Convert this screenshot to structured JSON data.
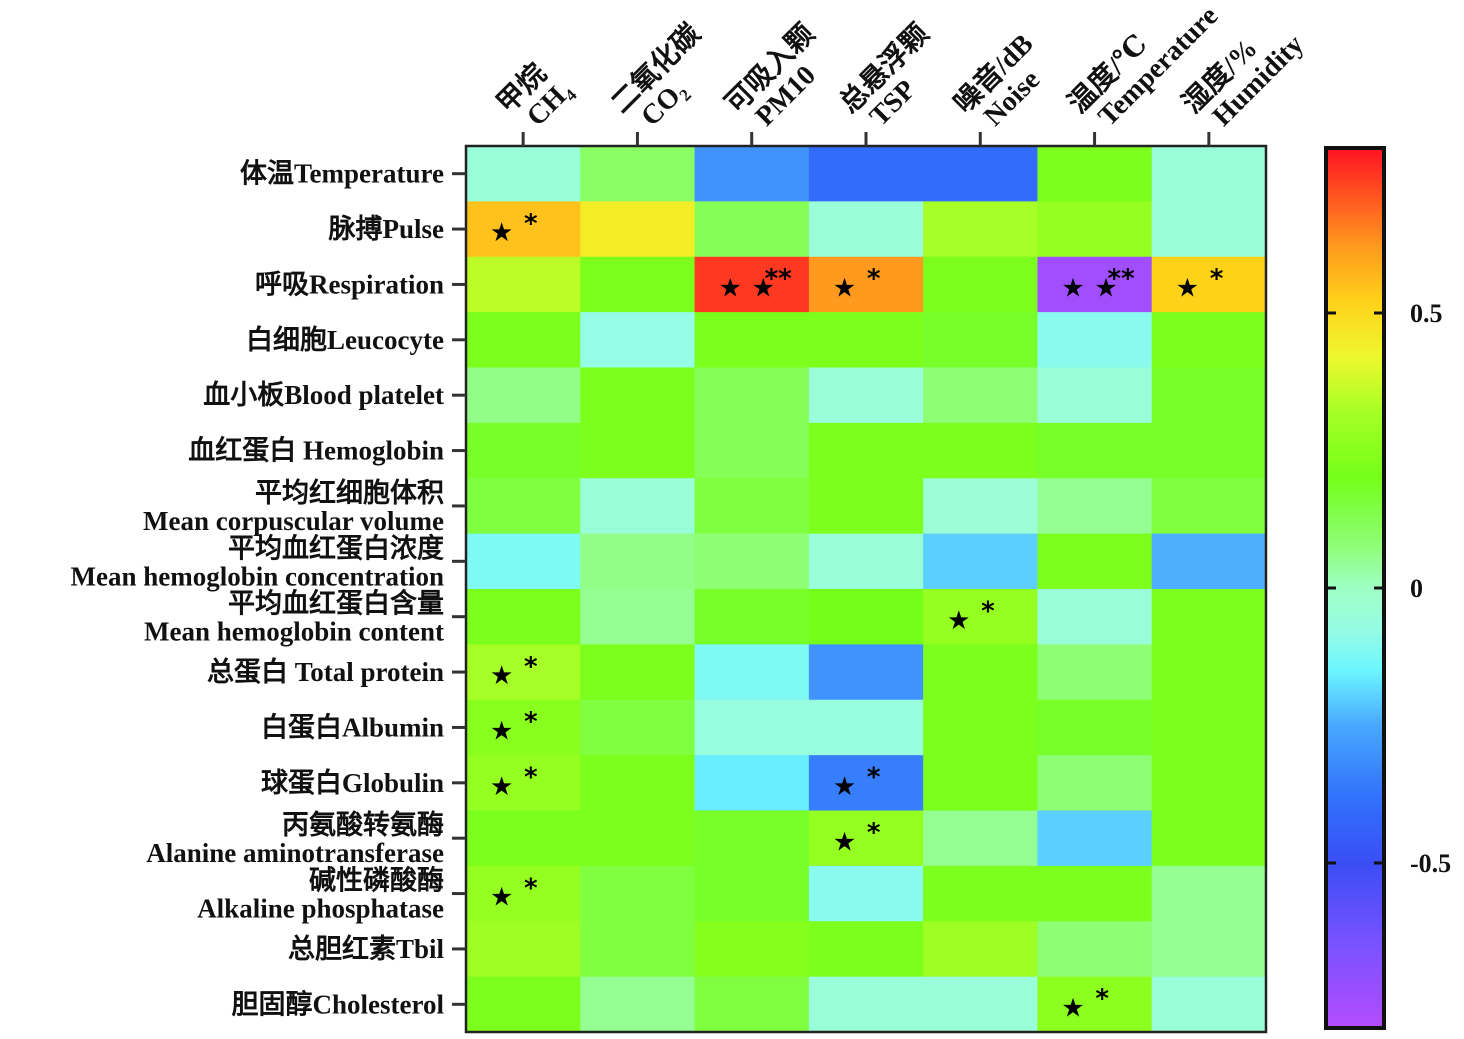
{
  "chart_data": {
    "type": "heatmap",
    "title": "",
    "xlabel": "",
    "ylabel": "",
    "columns": [
      {
        "zh": "甲烷",
        "en": "CH",
        "sub": "4"
      },
      {
        "zh": "二氧化碳",
        "en": "CO",
        "sub": "2"
      },
      {
        "zh": "可吸入颗",
        "en": "PM10",
        "sub": ""
      },
      {
        "zh": "总悬浮颗",
        "en": "TSP",
        "sub": ""
      },
      {
        "zh": "噪音/dB",
        "en": "Noise",
        "sub": ""
      },
      {
        "zh": "温度/℃",
        "en": "Temperature",
        "sub": ""
      },
      {
        "zh": "湿度/%",
        "en": "Humidity",
        "sub": ""
      }
    ],
    "rows": [
      {
        "line1": "体温Temperature",
        "line2": ""
      },
      {
        "line1": "脉搏Pulse",
        "line2": ""
      },
      {
        "line1": "呼吸Respiration",
        "line2": ""
      },
      {
        "line1": "白细胞Leucocyte",
        "line2": ""
      },
      {
        "line1": "血小板Blood platelet",
        "line2": ""
      },
      {
        "line1": "血红蛋白 Hemoglobin",
        "line2": ""
      },
      {
        "line1": "平均红细胞体积",
        "line2": "Mean corpuscular volume"
      },
      {
        "line1": "平均血红蛋白浓度",
        "line2": "Mean hemoglobin concentration"
      },
      {
        "line1": "平均血红蛋白含量",
        "line2": "Mean hemoglobin content"
      },
      {
        "line1": "总蛋白 Total protein",
        "line2": ""
      },
      {
        "line1": "白蛋白Albumin",
        "line2": ""
      },
      {
        "line1": "球蛋白Globulin",
        "line2": ""
      },
      {
        "line1": "丙氨酸转氨酶",
        "line2": "Alanine aminotransferase"
      },
      {
        "line1": "碱性磷酸酶",
        "line2": "Alkaline phosphatase"
      },
      {
        "line1": "总胆红素Tbil",
        "line2": ""
      },
      {
        "line1": "胆固醇Cholesterol",
        "line2": ""
      }
    ],
    "values": [
      [
        -0.05,
        0.1,
        -0.3,
        -0.4,
        -0.4,
        0.22,
        -0.05
      ],
      [
        0.55,
        0.45,
        0.12,
        -0.05,
        0.32,
        0.28,
        -0.05
      ],
      [
        0.35,
        0.22,
        0.75,
        0.62,
        0.22,
        -0.75,
        0.52
      ],
      [
        0.22,
        -0.08,
        0.22,
        0.22,
        0.18,
        -0.1,
        0.22
      ],
      [
        0.06,
        0.22,
        0.12,
        -0.05,
        0.08,
        -0.05,
        0.18
      ],
      [
        0.18,
        0.22,
        0.12,
        0.22,
        0.22,
        0.18,
        0.18
      ],
      [
        0.15,
        -0.05,
        0.15,
        0.22,
        -0.04,
        0.05,
        0.15
      ],
      [
        -0.12,
        0.06,
        0.08,
        -0.05,
        -0.2,
        0.22,
        -0.24
      ],
      [
        0.22,
        0.05,
        0.18,
        0.2,
        0.28,
        -0.05,
        0.22
      ],
      [
        0.32,
        0.22,
        -0.12,
        -0.3,
        0.22,
        0.08,
        0.22
      ],
      [
        0.25,
        0.15,
        -0.06,
        -0.06,
        0.22,
        0.18,
        0.22
      ],
      [
        0.28,
        0.22,
        -0.16,
        -0.35,
        0.22,
        0.08,
        0.22
      ],
      [
        0.22,
        0.22,
        0.18,
        0.28,
        0.05,
        -0.2,
        0.22
      ],
      [
        0.28,
        0.15,
        0.18,
        -0.1,
        0.22,
        0.22,
        0.05
      ],
      [
        0.3,
        0.15,
        0.24,
        0.22,
        0.3,
        0.08,
        0.05
      ],
      [
        0.22,
        0.05,
        0.15,
        -0.05,
        -0.05,
        0.26,
        -0.05
      ]
    ],
    "significance": [
      {
        "row": 1,
        "col": 0,
        "stars": 1,
        "marks": "*"
      },
      {
        "row": 2,
        "col": 2,
        "stars": 2,
        "marks": "**"
      },
      {
        "row": 2,
        "col": 3,
        "stars": 1,
        "marks": "*"
      },
      {
        "row": 2,
        "col": 5,
        "stars": 2,
        "marks": "**"
      },
      {
        "row": 2,
        "col": 6,
        "stars": 1,
        "marks": "*"
      },
      {
        "row": 8,
        "col": 4,
        "stars": 1,
        "marks": "*"
      },
      {
        "row": 9,
        "col": 0,
        "stars": 1,
        "marks": "*"
      },
      {
        "row": 10,
        "col": 0,
        "stars": 1,
        "marks": "*"
      },
      {
        "row": 11,
        "col": 0,
        "stars": 1,
        "marks": "*"
      },
      {
        "row": 11,
        "col": 3,
        "stars": 1,
        "marks": "*"
      },
      {
        "row": 12,
        "col": 3,
        "stars": 1,
        "marks": "*"
      },
      {
        "row": 13,
        "col": 0,
        "stars": 1,
        "marks": "*"
      },
      {
        "row": 15,
        "col": 5,
        "stars": 1,
        "marks": "*"
      }
    ],
    "colorbar": {
      "range": [
        -0.8,
        0.8
      ],
      "ticks": [
        0.5,
        0,
        -0.5
      ],
      "tick_labels": [
        "0.5",
        "0",
        "-0.5"
      ],
      "placement": "right",
      "colormap": [
        [
          -0.8,
          "#b44cff"
        ],
        [
          -0.65,
          "#7a52ff"
        ],
        [
          -0.5,
          "#3a4ef5"
        ],
        [
          -0.38,
          "#3172fb"
        ],
        [
          -0.25,
          "#49a8ff"
        ],
        [
          -0.15,
          "#6cf6ff"
        ],
        [
          -0.08,
          "#95fce6"
        ],
        [
          0.0,
          "#9ffec4"
        ],
        [
          0.08,
          "#8efe74"
        ],
        [
          0.2,
          "#74ff1a"
        ],
        [
          0.32,
          "#a6ff26"
        ],
        [
          0.42,
          "#eef82e"
        ],
        [
          0.52,
          "#ffd21a"
        ],
        [
          0.62,
          "#ff9a1e"
        ],
        [
          0.8,
          "#ff1222"
        ]
      ]
    },
    "grid": false
  }
}
